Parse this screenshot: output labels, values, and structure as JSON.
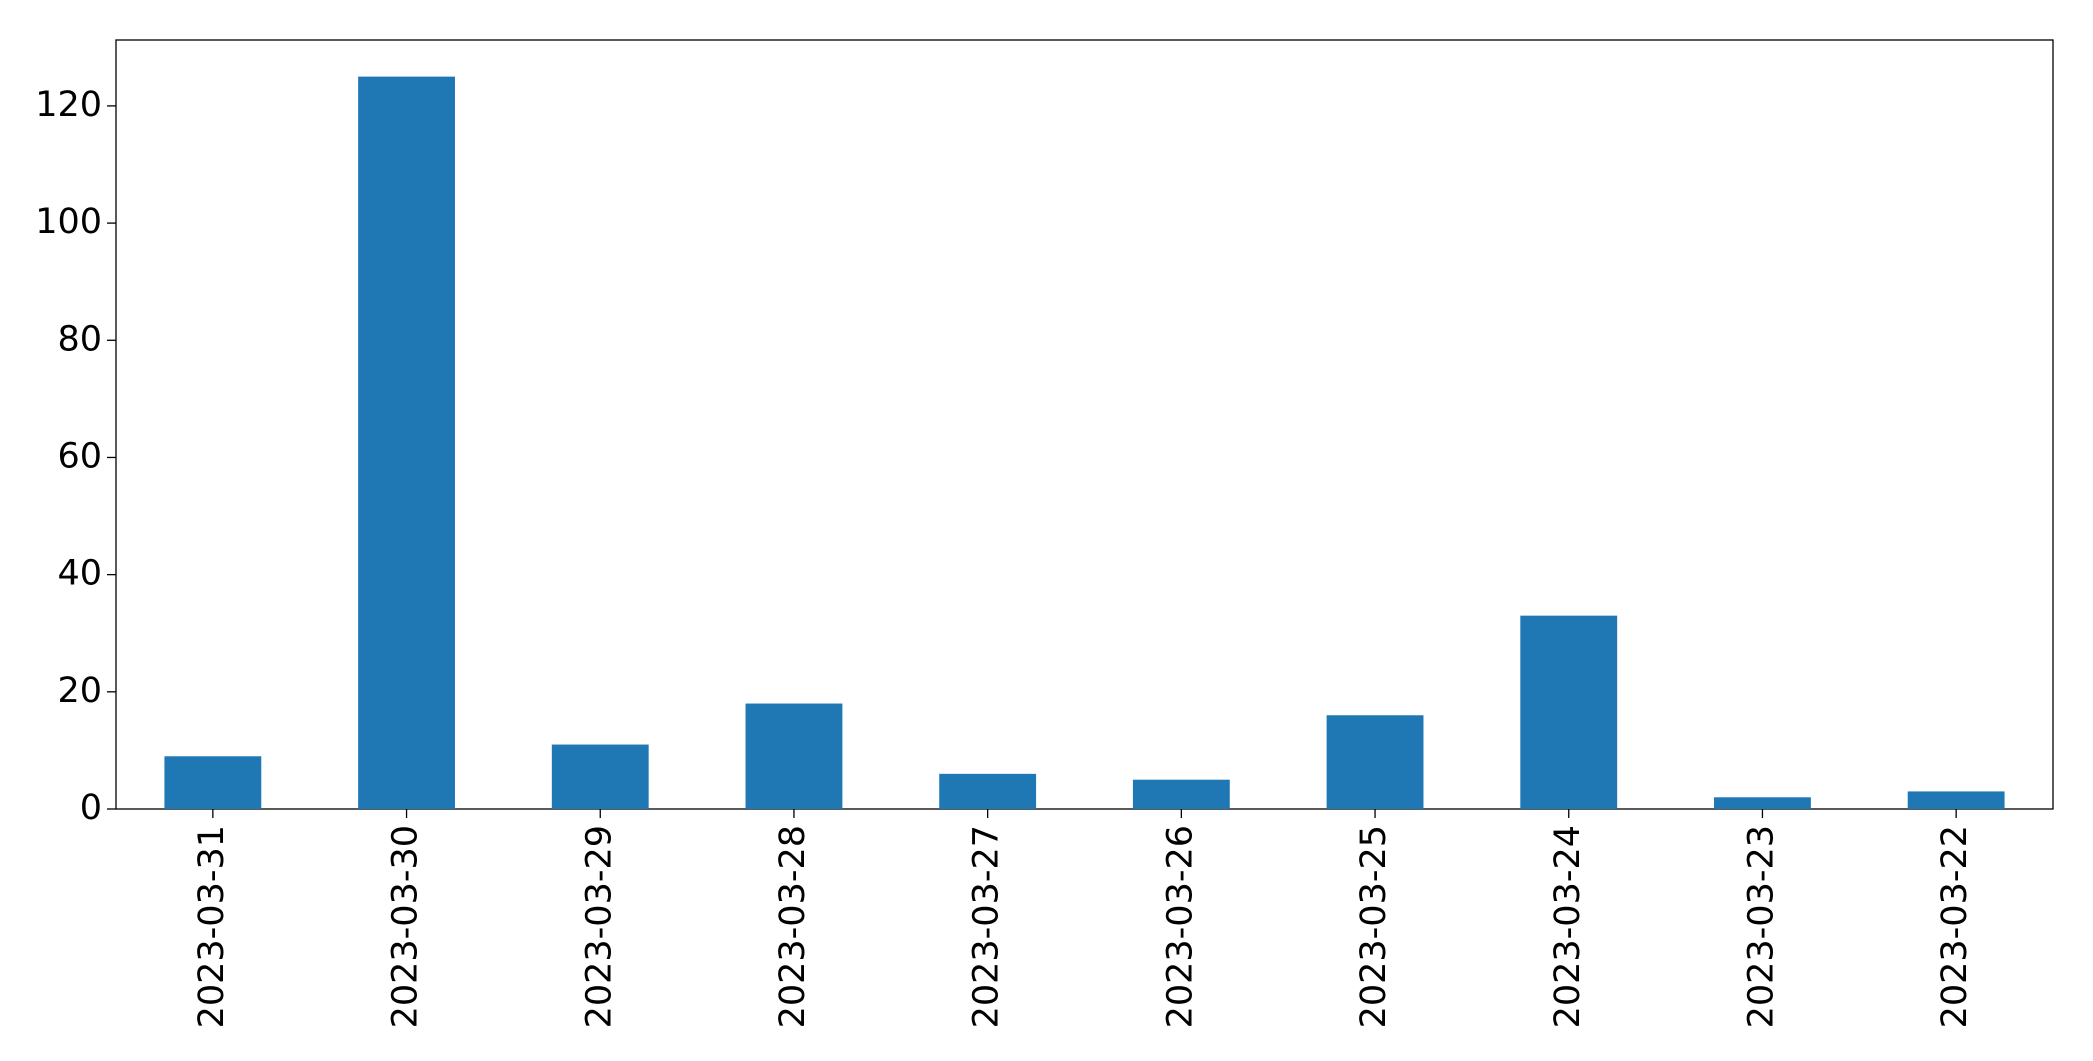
{
  "chart_data": {
    "type": "bar",
    "categories": [
      "2023-03-31",
      "2023-03-30",
      "2023-03-29",
      "2023-03-28",
      "2023-03-27",
      "2023-03-26",
      "2023-03-25",
      "2023-03-24",
      "2023-03-23",
      "2023-03-22"
    ],
    "values": [
      9,
      125,
      11,
      18,
      6,
      5,
      16,
      33,
      2,
      3
    ],
    "color": "#1f77b4",
    "ylim": [
      0,
      131.25
    ],
    "yticks": [
      0,
      20,
      40,
      60,
      80,
      100,
      120
    ],
    "grid": false
  }
}
